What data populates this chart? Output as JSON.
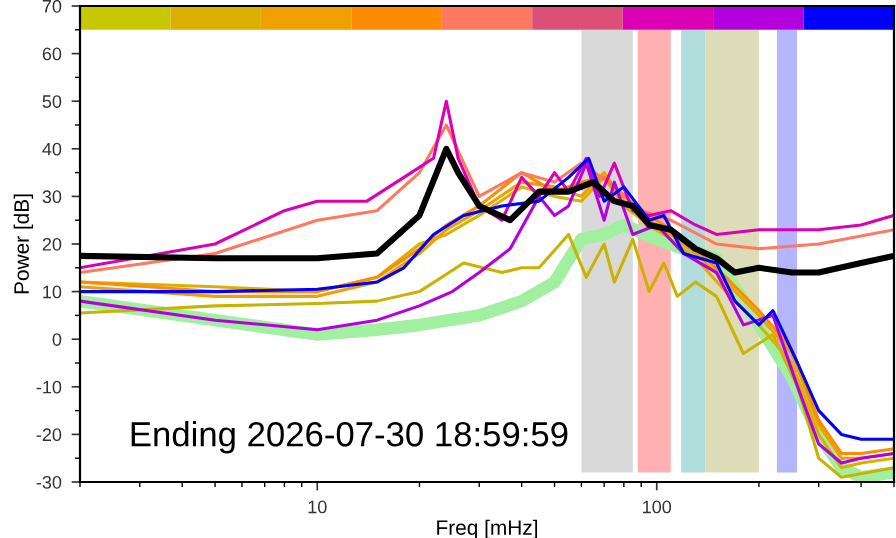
{
  "chart_data": [
    {
      "type": "line",
      "xlabel": "Freq [mHz]",
      "ylabel": "Power [dB]",
      "log": "x",
      "xlim": [
        2,
        500
      ],
      "ylim": [
        -30,
        70
      ],
      "xticks": [
        10,
        100
      ],
      "yticks": [
        -30,
        -20,
        -10,
        0,
        10,
        20,
        30,
        40,
        50,
        60,
        70
      ],
      "grid": false,
      "legend": false,
      "marker": "none",
      "line_style": "solid",
      "annotations": [
        "Ending 2026-07-30 18:59:59"
      ],
      "bands": [
        {
          "axis": "x",
          "from": 60,
          "to": 85,
          "color": "#d9d9d9"
        },
        {
          "axis": "x",
          "from": 88,
          "to": 110,
          "color": "#ffb0b0"
        },
        {
          "axis": "x",
          "from": 118,
          "to": 139,
          "color": "#b0dcdc"
        },
        {
          "axis": "x",
          "from": 139,
          "to": 200,
          "color": "#dcdcb8"
        },
        {
          "axis": "x",
          "from": 226,
          "to": 259,
          "color": "#b4b4ff"
        }
      ],
      "series": [
        {
          "color": "#a0f0a0",
          "x": [
            2,
            5,
            10,
            15,
            20,
            30,
            40,
            50,
            60,
            70,
            80,
            100,
            120,
            150,
            200,
            250,
            300,
            350,
            400,
            500
          ],
          "values": [
            8,
            4,
            1,
            2,
            3,
            5,
            8,
            12,
            21,
            22,
            24,
            21,
            19,
            17,
            3,
            -8,
            -20,
            -27,
            -29,
            -28
          ]
        },
        {
          "color": "#c8b400",
          "x": [
            2,
            5,
            10,
            15,
            20,
            27,
            35,
            40,
            45,
            55,
            62,
            70,
            75,
            85,
            95,
            105,
            115,
            130,
            150,
            180,
            220,
            260,
            300,
            350,
            500
          ],
          "values": [
            5.5,
            7,
            7.5,
            8,
            10,
            16,
            14,
            15,
            15,
            22,
            13,
            20,
            12,
            21,
            10,
            16,
            9,
            12,
            9,
            -3,
            1,
            -10,
            -25,
            -29,
            -27
          ]
        },
        {
          "color": "#dcb000",
          "x": [
            2,
            5,
            10,
            15,
            20,
            24,
            30,
            40,
            50,
            60,
            70,
            80,
            95,
            110,
            130,
            160,
            200,
            250,
            300,
            350,
            400,
            500
          ],
          "values": [
            12,
            11,
            10,
            13,
            20,
            22,
            26,
            32,
            30,
            29,
            34,
            28,
            24,
            21,
            17,
            10,
            3,
            -5,
            -20,
            -27,
            -26,
            -25
          ]
        },
        {
          "color": "#f0a000",
          "x": [
            2,
            5,
            10,
            15,
            20,
            24,
            30,
            40,
            50,
            60,
            70,
            80,
            95,
            110,
            130,
            160,
            200,
            250,
            300,
            350,
            400,
            500
          ],
          "values": [
            11,
            9,
            9,
            12,
            18,
            23,
            27,
            33,
            32,
            30,
            35,
            29,
            25,
            22,
            18,
            12,
            5,
            -3,
            -18,
            -25,
            -25,
            -24
          ]
        },
        {
          "color": "#ff8c00",
          "x": [
            2,
            5,
            10,
            15,
            20,
            24,
            30,
            40,
            50,
            60,
            70,
            80,
            95,
            110,
            130,
            160,
            200,
            250,
            300,
            350,
            400,
            500
          ],
          "values": [
            12,
            10,
            10,
            13,
            19,
            24,
            28,
            35,
            31,
            33,
            34,
            30,
            26,
            23,
            19,
            13,
            6,
            -2,
            -17,
            -24,
            -24,
            -23
          ]
        },
        {
          "color": "#ff7860",
          "x": [
            2,
            5,
            10,
            15,
            20,
            24,
            27,
            30,
            40,
            50,
            60,
            75,
            90,
            110,
            150,
            200,
            300,
            500
          ],
          "values": [
            14,
            18,
            25,
            27,
            35,
            45,
            37,
            30,
            35,
            33,
            37,
            32,
            27,
            25,
            20,
            19,
            20,
            23
          ]
        },
        {
          "color": "#dc00b4",
          "x": [
            2,
            5,
            8,
            10,
            14,
            18,
            22,
            24,
            26,
            30,
            35,
            40,
            45,
            50,
            55,
            62,
            68,
            75,
            85,
            95,
            110,
            130,
            150,
            200,
            300,
            400,
            500
          ],
          "values": [
            15,
            20,
            27,
            29,
            29,
            34,
            38,
            50,
            38,
            28,
            25,
            34,
            30,
            35,
            31,
            38,
            30,
            37,
            27,
            26,
            27,
            24,
            22,
            23,
            23,
            24,
            26
          ]
        },
        {
          "color": "#b400dc",
          "x": [
            2,
            5,
            10,
            15,
            20,
            25,
            30,
            37,
            45,
            50,
            55,
            62,
            70,
            75,
            85,
            100,
            120,
            150,
            180,
            220,
            260,
            300,
            350,
            400,
            500
          ],
          "values": [
            8,
            4,
            2,
            4,
            7,
            10,
            14,
            19,
            30,
            26,
            28,
            37,
            25,
            33,
            22,
            24,
            18,
            14,
            3,
            5,
            -10,
            -22,
            -26,
            -25,
            -24
          ]
        },
        {
          "color": "#0000ff",
          "x": [
            2,
            5,
            10,
            15,
            18,
            22,
            27,
            35,
            45,
            55,
            63,
            70,
            80,
            95,
            105,
            120,
            150,
            170,
            200,
            220,
            260,
            300,
            350,
            400,
            500
          ],
          "values": [
            10,
            10,
            10.5,
            12,
            15,
            22,
            26,
            28,
            29,
            34,
            38,
            29,
            32,
            25,
            26,
            18,
            16,
            8,
            3,
            6,
            -5,
            -15,
            -20,
            -21,
            -21
          ]
        },
        {
          "color": "#000000",
          "x": [
            2,
            5,
            10,
            15,
            20,
            24,
            26,
            30,
            37,
            45,
            55,
            65,
            75,
            85,
            95,
            110,
            130,
            150,
            170,
            200,
            250,
            300,
            400,
            500
          ],
          "values": [
            17.5,
            17,
            17,
            18,
            26,
            40,
            35,
            28,
            25,
            31,
            31,
            33,
            29,
            28,
            24,
            23,
            19,
            17,
            14,
            15,
            14,
            14,
            16,
            17.5
          ]
        }
      ]
    }
  ]
}
